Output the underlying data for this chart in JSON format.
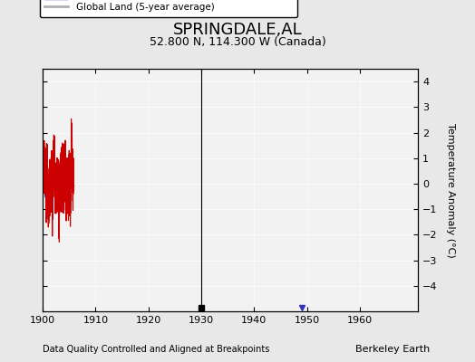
{
  "title": "SPRINGDALE,AL",
  "subtitle": "52.800 N, 114.300 W (Canada)",
  "xlabel_note": "Data Quality Controlled and Aligned at Breakpoints",
  "credit": "Berkeley Earth",
  "ylabel": "Temperature Anomaly (°C)",
  "xlim": [
    1900,
    1971
  ],
  "ylim": [
    -5,
    4.5
  ],
  "yticks": [
    -4,
    -3,
    -2,
    -1,
    0,
    1,
    2,
    3,
    4
  ],
  "xticks": [
    1900,
    1910,
    1920,
    1930,
    1940,
    1950,
    1960
  ],
  "bg_color": "#e8e8e8",
  "plot_bg_color": "#f2f2f2",
  "station_color": "#cc0000",
  "regional_color": "#3333bb",
  "regional_fill_color": "#aaaadd",
  "global_color": "#b0b0b0",
  "empirical_break_year": 1930,
  "obs_change_year": 1949,
  "seed": 42
}
